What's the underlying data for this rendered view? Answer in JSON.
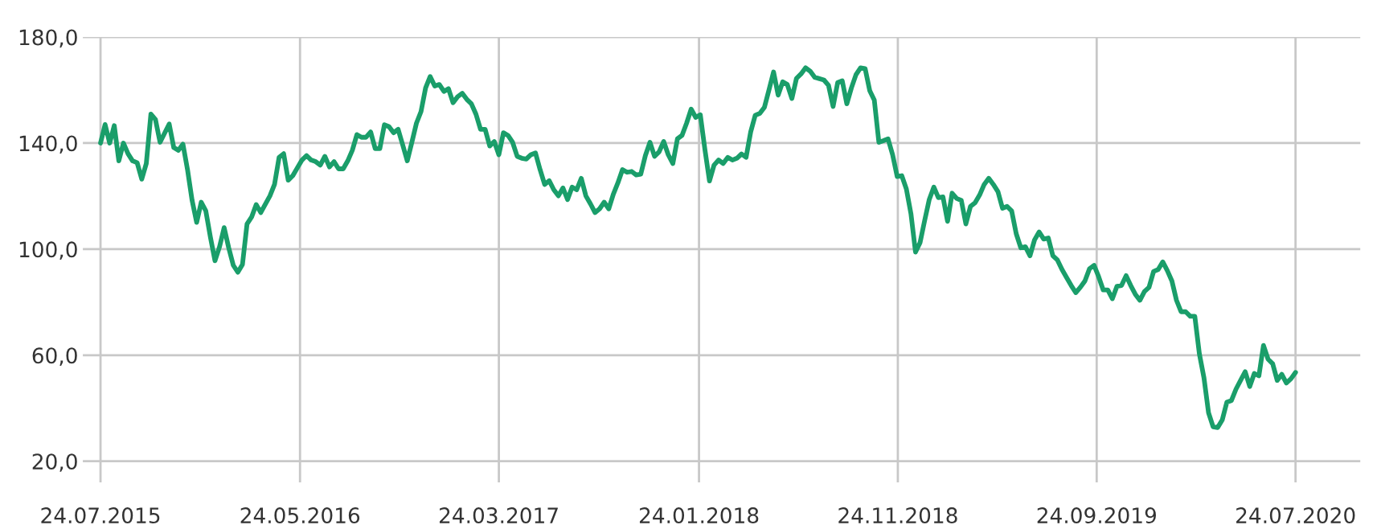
{
  "chart_data": {
    "type": "line",
    "x": [
      "2015-07-24",
      "2015-07-31",
      "2015-08-07",
      "2015-08-14",
      "2015-08-21",
      "2015-08-28",
      "2015-09-04",
      "2015-09-11",
      "2015-09-18",
      "2015-09-25",
      "2015-10-02",
      "2015-10-09",
      "2015-10-16",
      "2015-10-23",
      "2015-11-06",
      "2015-11-13",
      "2015-11-20",
      "2015-11-27",
      "2015-12-04",
      "2015-12-11",
      "2015-12-18",
      "2015-12-25",
      "2016-01-01",
      "2016-01-08",
      "2016-01-15",
      "2016-01-22",
      "2016-01-29",
      "2016-02-05",
      "2016-02-12",
      "2016-02-19",
      "2016-02-26",
      "2016-03-04",
      "2016-03-11",
      "2016-03-18",
      "2016-03-25",
      "2016-04-08",
      "2016-04-15",
      "2016-04-22",
      "2016-04-29",
      "2016-05-06",
      "2016-05-13",
      "2016-05-20",
      "2016-05-27",
      "2016-06-03",
      "2016-06-10",
      "2016-06-17",
      "2016-06-24",
      "2016-07-01",
      "2016-07-08",
      "2016-07-15",
      "2016-07-22",
      "2016-07-29",
      "2016-08-05",
      "2016-08-12",
      "2016-08-19",
      "2016-08-26",
      "2016-09-02",
      "2016-09-09",
      "2016-09-16",
      "2016-09-23",
      "2016-09-30",
      "2016-10-07",
      "2016-10-14",
      "2016-10-21",
      "2016-10-28",
      "2016-11-04",
      "2016-11-11",
      "2016-11-18",
      "2016-11-25",
      "2016-12-02",
      "2016-12-09",
      "2016-12-16",
      "2016-12-23",
      "2016-12-30",
      "2017-01-06",
      "2017-01-13",
      "2017-01-20",
      "2017-01-27",
      "2017-02-03",
      "2017-02-10",
      "2017-02-17",
      "2017-02-24",
      "2017-03-03",
      "2017-03-10",
      "2017-03-17",
      "2017-03-24",
      "2017-03-31",
      "2017-04-07",
      "2017-04-14",
      "2017-04-21",
      "2017-04-28",
      "2017-05-05",
      "2017-05-12",
      "2017-05-19",
      "2017-05-26",
      "2017-06-02",
      "2017-06-09",
      "2017-06-16",
      "2017-06-23",
      "2017-06-30",
      "2017-07-07",
      "2017-07-14",
      "2017-07-21",
      "2017-07-28",
      "2017-08-04",
      "2017-08-11",
      "2017-08-18",
      "2017-08-25",
      "2017-09-01",
      "2017-09-08",
      "2017-09-15",
      "2017-09-22",
      "2017-09-29",
      "2017-10-06",
      "2017-10-13",
      "2017-10-20",
      "2017-10-27",
      "2017-11-03",
      "2017-11-10",
      "2017-11-17",
      "2017-11-24",
      "2017-12-01",
      "2017-12-08",
      "2017-12-15",
      "2017-12-22",
      "2017-12-29",
      "2018-01-05",
      "2018-01-12",
      "2018-01-19",
      "2018-01-26",
      "2018-02-02",
      "2018-02-09",
      "2018-02-16",
      "2018-02-23",
      "2018-03-02",
      "2018-03-09",
      "2018-03-16",
      "2018-03-23",
      "2018-03-30",
      "2018-04-06",
      "2018-04-13",
      "2018-04-20",
      "2018-04-27",
      "2018-05-04",
      "2018-05-11",
      "2018-05-18",
      "2018-05-25",
      "2018-06-01",
      "2018-06-08",
      "2018-06-15",
      "2018-06-22",
      "2018-06-29",
      "2018-07-06",
      "2018-07-13",
      "2018-07-20",
      "2018-08-03",
      "2018-08-10",
      "2018-08-17",
      "2018-08-24",
      "2018-08-31",
      "2018-09-07",
      "2018-09-14",
      "2018-09-21",
      "2018-09-28",
      "2018-10-05",
      "2018-10-12",
      "2018-10-19",
      "2018-10-26",
      "2018-11-02",
      "2018-11-09",
      "2018-11-16",
      "2018-11-23",
      "2018-11-30",
      "2018-12-07",
      "2018-12-14",
      "2018-12-21",
      "2018-12-28",
      "2019-01-04",
      "2019-01-11",
      "2019-01-18",
      "2019-01-25",
      "2019-02-01",
      "2019-02-08",
      "2019-02-15",
      "2019-02-22",
      "2019-03-01",
      "2019-03-08",
      "2019-03-15",
      "2019-03-22",
      "2019-03-29",
      "2019-04-05",
      "2019-04-12",
      "2019-04-19",
      "2019-04-26",
      "2019-05-03",
      "2019-05-10",
      "2019-05-17",
      "2019-05-24",
      "2019-05-31",
      "2019-06-07",
      "2019-06-14",
      "2019-06-21",
      "2019-06-28",
      "2019-07-05",
      "2019-07-12",
      "2019-07-19",
      "2019-07-26",
      "2019-08-02",
      "2019-08-09",
      "2019-08-16",
      "2019-08-23",
      "2019-08-30",
      "2019-09-06",
      "2019-09-13",
      "2019-09-20",
      "2019-09-27",
      "2019-10-04",
      "2019-10-11",
      "2019-10-18",
      "2019-10-25",
      "2019-11-01",
      "2019-11-08",
      "2019-11-15",
      "2019-11-22",
      "2019-11-29",
      "2019-12-06",
      "2019-12-13",
      "2019-12-20",
      "2019-12-27",
      "2020-01-03",
      "2020-01-10",
      "2020-01-17",
      "2020-01-24",
      "2020-01-31",
      "2020-02-07",
      "2020-02-14",
      "2020-02-21",
      "2020-02-28",
      "2020-03-06",
      "2020-03-13",
      "2020-03-20",
      "2020-03-27",
      "2020-04-03",
      "2020-04-10",
      "2020-04-17",
      "2020-04-24",
      "2020-05-01",
      "2020-05-08",
      "2020-05-15",
      "2020-05-22",
      "2020-05-29",
      "2020-06-05",
      "2020-06-12",
      "2020-06-19",
      "2020-06-26",
      "2020-07-03",
      "2020-07-10",
      "2020-07-17",
      "2020-07-24"
    ],
    "series": [
      {
        "color": "#1a9e6a",
        "values": [
          140,
          147,
          140,
          146.6,
          133.3,
          140,
          136,
          133.3,
          132.6,
          126.4,
          132.3,
          150.9,
          148.9,
          140.3,
          147.2,
          138.3,
          137.3,
          139.6,
          130,
          118.4,
          110.1,
          117.7,
          114.4,
          104.5,
          95.6,
          100.9,
          108.1,
          100.5,
          93.9,
          91.3,
          94.2,
          109.5,
          112.1,
          116.8,
          113.8,
          120.1,
          124.4,
          134.6,
          136,
          126,
          127.7,
          130.7,
          133.6,
          135.3,
          133.6,
          133,
          131.7,
          135,
          131,
          133,
          130.3,
          130.3,
          133.3,
          137.3,
          143.2,
          142.2,
          142.2,
          144.2,
          137.9,
          137.9,
          146.9,
          146.2,
          143.9,
          145.2,
          139.3,
          133.3,
          140.3,
          147.5,
          151.9,
          160.8,
          165.1,
          161.5,
          162.1,
          159.5,
          160.5,
          155.2,
          157.5,
          158.8,
          156.5,
          154.8,
          150.9,
          145.2,
          145.2,
          138.9,
          140.6,
          135.6,
          143.9,
          142.9,
          140.3,
          135,
          134.3,
          134,
          135.6,
          136.3,
          130,
          124.4,
          125.8,
          122.4,
          120.1,
          123.1,
          118.7,
          123.4,
          122.4,
          126.7,
          120.1,
          117.1,
          113.8,
          115.2,
          117.7,
          115.2,
          120.7,
          125,
          130,
          129,
          129.3,
          128,
          128.3,
          135.3,
          140.3,
          135,
          136.7,
          140.6,
          135.6,
          132.3,
          141.6,
          142.9,
          147.5,
          152.8,
          149.7,
          150.7,
          137.6,
          125.7,
          131.7,
          133.6,
          132.3,
          134.6,
          133.6,
          134.3,
          135.9,
          134.6,
          144.2,
          150.5,
          151.2,
          153.5,
          160.1,
          166.8,
          158.1,
          163.1,
          162.1,
          156.8,
          164.4,
          166.1,
          168.4,
          167.1,
          164.8,
          163.8,
          161.8,
          153.8,
          162.8,
          163.5,
          154.8,
          160.8,
          165.8,
          168.4,
          168.1,
          159.8,
          156.2,
          140.3,
          140.9,
          141.6,
          135.6,
          127.4,
          127.7,
          122.7,
          113.4,
          98.9,
          102.5,
          110.8,
          118.7,
          123.4,
          119.4,
          119.7,
          110.5,
          121.1,
          119.1,
          118.4,
          109.5,
          116.1,
          117.5,
          120.4,
          124.4,
          126.7,
          124.4,
          121.7,
          115.4,
          116.1,
          114.4,
          105.8,
          100.5,
          100.9,
          97.5,
          103.5,
          106.5,
          103.8,
          104.2,
          97.5,
          95.9,
          92.3,
          89.3,
          86.3,
          83.6,
          85.6,
          88,
          92.6,
          93.9,
          89.6,
          84.6,
          84.6,
          81.3,
          86,
          86.3,
          90,
          86.3,
          83,
          80.7,
          84,
          85.6,
          91.6,
          92.3,
          95.2,
          91.9,
          88,
          80.7,
          76.4,
          76.4,
          74.7,
          74.7,
          60.5,
          51.5,
          38.3,
          33,
          32.7,
          35.6,
          42.3,
          42.9,
          47.2,
          50.5,
          53.8,
          48.2,
          53.1,
          52.2,
          63.7,
          58.5,
          56.8,
          50.5,
          52.8,
          49.5,
          51.1,
          53.5
        ]
      }
    ],
    "xlim": [
      "2015-06-27",
      "2020-10-31"
    ],
    "xticks": [
      {
        "value": "2015-07-24",
        "label": "24.07.2015"
      },
      {
        "value": "2016-05-24",
        "label": "24.05.2016"
      },
      {
        "value": "2017-03-24",
        "label": "24.03.2017"
      },
      {
        "value": "2018-01-24",
        "label": "24.01.2018"
      },
      {
        "value": "2018-11-24",
        "label": "24.11.2018"
      },
      {
        "value": "2019-09-24",
        "label": "24.09.2019"
      },
      {
        "value": "2020-07-24",
        "label": "24.07.2020"
      }
    ],
    "ylim": [
      12,
      180
    ],
    "yticks": [
      {
        "value": 20,
        "label": "20,0"
      },
      {
        "value": 60,
        "label": "60,0"
      },
      {
        "value": 100,
        "label": "100,0"
      },
      {
        "value": 140,
        "label": "140,0"
      },
      {
        "value": 180,
        "label": "180,0"
      }
    ],
    "grid": true,
    "legend": false
  }
}
